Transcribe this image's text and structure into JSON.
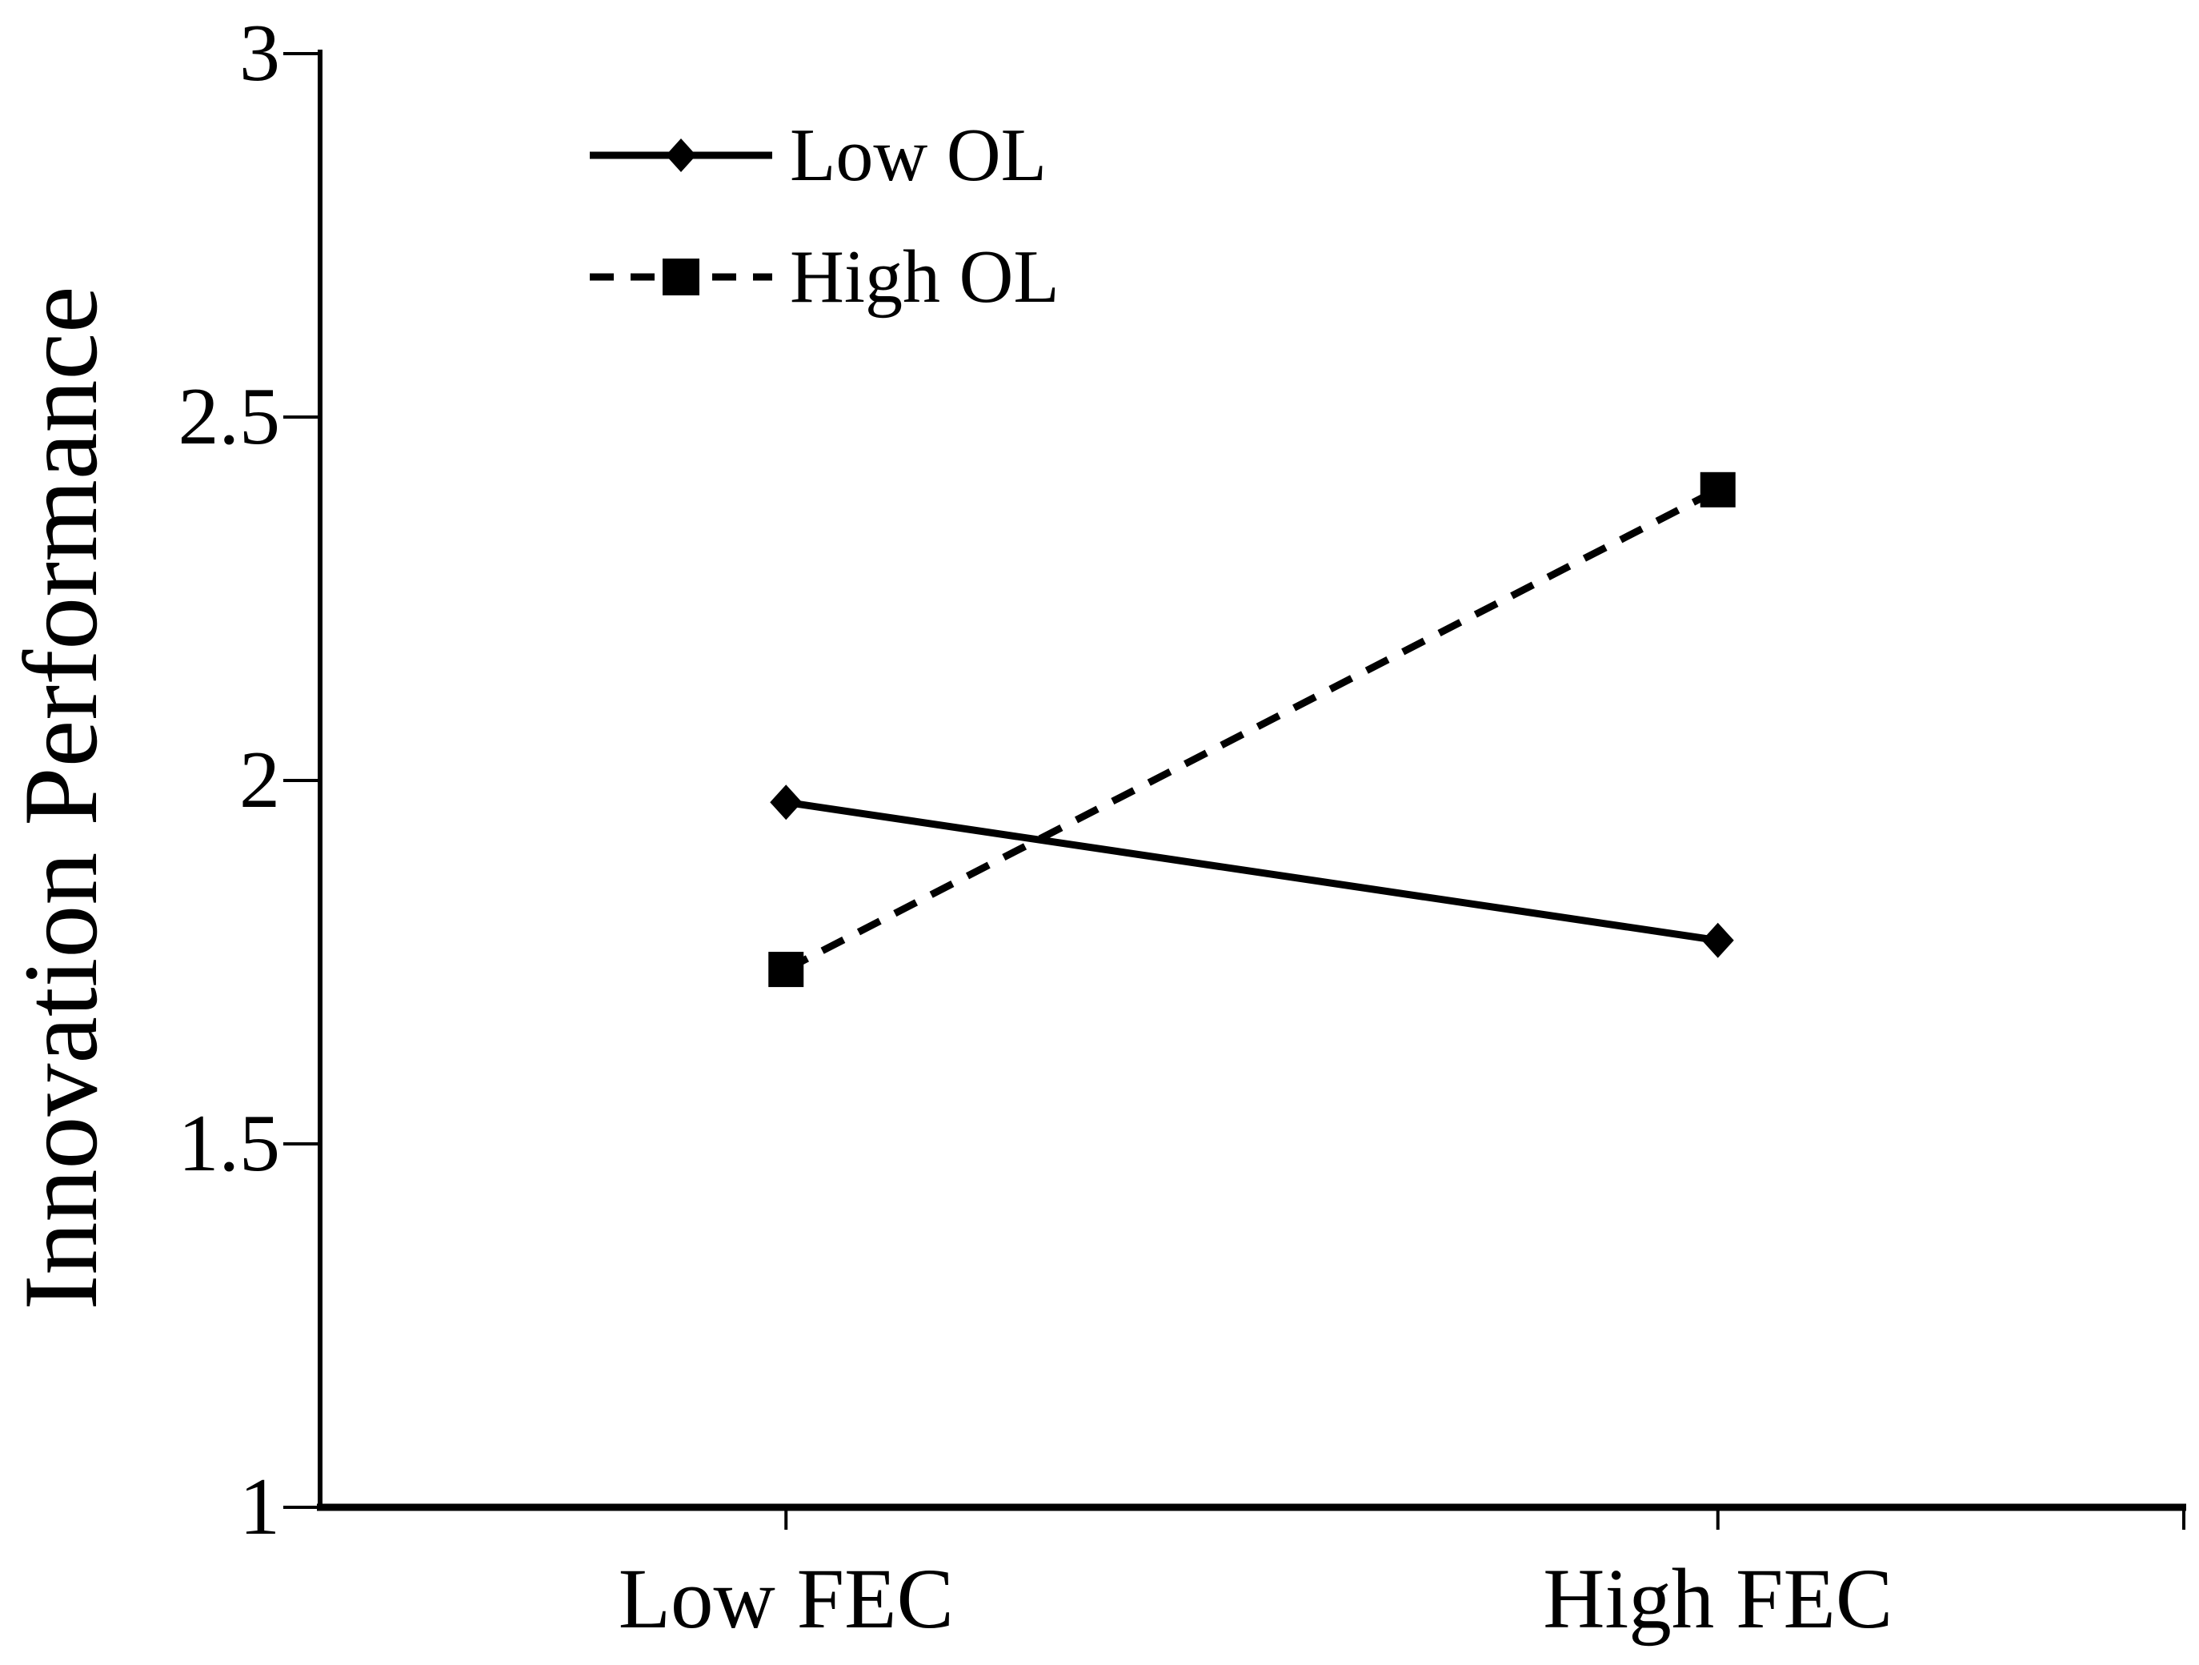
{
  "chart_data": {
    "type": "line",
    "title": "",
    "categories": [
      "Low FEC",
      "High FEC"
    ],
    "series": [
      {
        "name": "Low OL",
        "values": [
          1.97,
          1.78
        ],
        "line_style": "solid",
        "marker": "diamond"
      },
      {
        "name": "High OL",
        "values": [
          1.74,
          2.4
        ],
        "line_style": "dashed",
        "marker": "square"
      }
    ],
    "xlabel": "",
    "ylabel": "Innovation Performance",
    "ylim": [
      1,
      3
    ],
    "yticks": [
      3,
      2.5,
      2,
      1.5,
      1
    ],
    "ytick_labels": [
      "3",
      "2.5",
      "2",
      "1.5",
      "1"
    ],
    "grid": "off",
    "legend_position": "top-left-inside",
    "legend": [
      {
        "label": "Low OL",
        "line_style": "solid",
        "marker": "diamond"
      },
      {
        "label": "High OL",
        "line_style": "dashed",
        "marker": "square"
      }
    ],
    "colors": {
      "foreground": "#000000",
      "background": "#ffffff"
    }
  }
}
